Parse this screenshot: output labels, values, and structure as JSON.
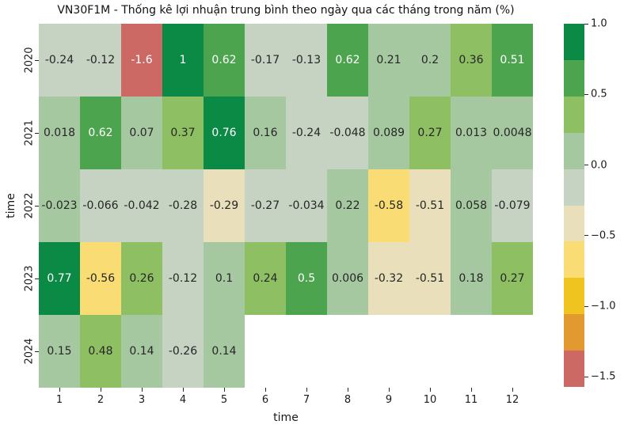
{
  "chart_data": {
    "type": "heatmap",
    "title": "VN30F1M - Thống kê lợi nhuận trung bình theo ngày qua các tháng trong năm (%)",
    "xlabel": "time",
    "ylabel": "time",
    "x_ticks": [
      "1",
      "2",
      "3",
      "4",
      "5",
      "6",
      "7",
      "8",
      "9",
      "10",
      "11",
      "12"
    ],
    "y_ticks": [
      "2020",
      "2021",
      "2022",
      "2023",
      "2024"
    ],
    "series": [
      {
        "name": "2020",
        "values": [
          -0.24,
          -0.12,
          -1.6,
          1,
          0.62,
          -0.17,
          -0.13,
          0.62,
          0.21,
          0.2,
          0.36,
          0.51
        ],
        "labels": [
          "-0.24",
          "-0.12",
          "-1.6",
          "1",
          "0.62",
          "-0.17",
          "-0.13",
          "0.62",
          "0.21",
          "0.2",
          "0.36",
          "0.51"
        ]
      },
      {
        "name": "2021",
        "values": [
          0.018,
          0.62,
          0.07,
          0.37,
          0.76,
          0.16,
          -0.24,
          -0.048,
          0.089,
          0.27,
          0.013,
          0.0048
        ],
        "labels": [
          "0.018",
          "0.62",
          "0.07",
          "0.37",
          "0.76",
          "0.16",
          "-0.24",
          "-0.048",
          "0.089",
          "0.27",
          "0.013",
          "0.0048"
        ]
      },
      {
        "name": "2022",
        "values": [
          -0.023,
          -0.066,
          -0.042,
          -0.28,
          -0.29,
          -0.27,
          -0.034,
          0.22,
          -0.58,
          -0.51,
          0.058,
          -0.079
        ],
        "labels": [
          "-0.023",
          "-0.066",
          "-0.042",
          "-0.28",
          "-0.29",
          "-0.27",
          "-0.034",
          "0.22",
          "-0.58",
          "-0.51",
          "0.058",
          "-0.079"
        ]
      },
      {
        "name": "2023",
        "values": [
          0.77,
          -0.56,
          0.26,
          -0.12,
          0.1,
          0.24,
          0.5,
          0.006,
          -0.32,
          -0.51,
          0.18,
          0.27
        ],
        "labels": [
          "0.77",
          "-0.56",
          "0.26",
          "-0.12",
          "0.1",
          "0.24",
          "0.5",
          "0.006",
          "-0.32",
          "-0.51",
          "0.18",
          "0.27"
        ]
      },
      {
        "name": "2024",
        "values": [
          0.15,
          0.48,
          0.14,
          -0.26,
          0.14,
          null,
          null,
          null,
          null,
          null,
          null,
          null
        ],
        "labels": [
          "0.15",
          "0.48",
          "0.14",
          "-0.26",
          "0.14",
          null,
          null,
          null,
          null,
          null,
          null,
          null
        ]
      }
    ],
    "vmin": -1.57,
    "vmax": 1.0,
    "n_bands": 10,
    "palette_low_to_high": [
      "#cd6965",
      "#e2992f",
      "#f0c41e",
      "#f9dc73",
      "#e9dfba",
      "#c6d2c2",
      "#a6c8a0",
      "#8ec063",
      "#4ca44f",
      "#0b8a45"
    ],
    "band_text_colors": [
      "#ffffff",
      "#262626",
      "#262626",
      "#262626",
      "#262626",
      "#262626",
      "#262626",
      "#262626",
      "#ffffff",
      "#ffffff"
    ],
    "annot_dark_color": "#1a1a1a",
    "background_color": "#ffffff",
    "colorbar": {
      "tick_labels": [
        "1.0",
        "0.5",
        "0.0",
        "−0.5",
        "−1.0",
        "−1.5"
      ],
      "tick_values": [
        1.0,
        0.5,
        0.0,
        -0.5,
        -1.0,
        -1.5
      ],
      "position": "right"
    },
    "grid": false,
    "missing_cells": "2024 months 6-12"
  }
}
